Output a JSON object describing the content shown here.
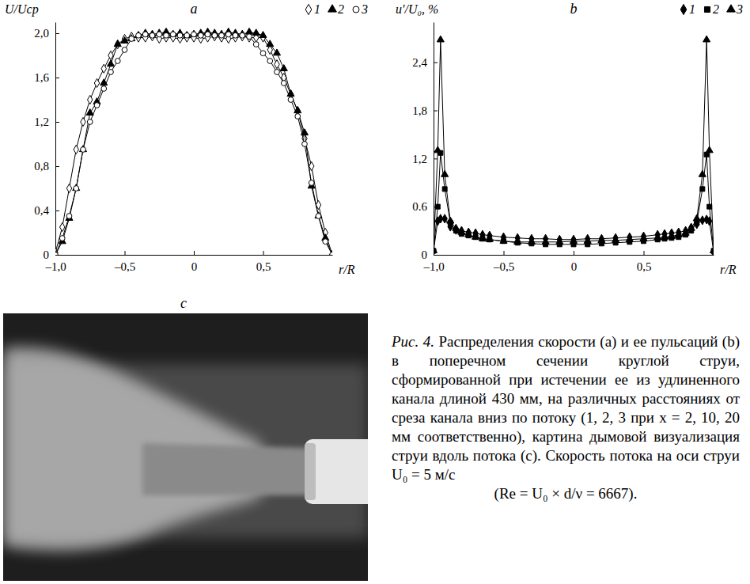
{
  "chart_data": [
    {
      "type": "line",
      "title": "a",
      "x_label": "r/R",
      "y_label": "U/Uср",
      "legend": "top-right",
      "xlim": [
        -1,
        1
      ],
      "ylim": [
        0,
        2.1
      ],
      "xticks": [
        {
          "value": -1,
          "label": "–1,0"
        },
        {
          "value": -0.5,
          "label": "–0,5"
        },
        0,
        {
          "value": 0.5,
          "label": "0,5"
        }
      ],
      "yticks": [
        0,
        {
          "value": 0.4,
          "label": "0,4"
        },
        {
          "value": 0.8,
          "label": "0,8"
        },
        {
          "value": 1.2,
          "label": "1,2"
        },
        {
          "value": 1.6,
          "label": "1,6"
        },
        {
          "value": 2.0,
          "label": "2,0"
        }
      ],
      "x": [
        -1,
        -0.95,
        -0.9,
        -0.85,
        -0.8,
        -0.75,
        -0.7,
        -0.65,
        -0.6,
        -0.55,
        -0.5,
        -0.45,
        -0.4,
        -0.35,
        -0.3,
        -0.25,
        -0.2,
        -0.15,
        -0.1,
        -0.05,
        0,
        0.05,
        0.1,
        0.15,
        0.2,
        0.25,
        0.3,
        0.35,
        0.4,
        0.45,
        0.5,
        0.55,
        0.6,
        0.65,
        0.7,
        0.75,
        0.8,
        0.85,
        0.9,
        0.95,
        1
      ],
      "series": [
        {
          "name": "1",
          "color": "#000000",
          "marker": "open-diamond",
          "values": [
            0.02,
            0.25,
            0.6,
            0.95,
            1.2,
            1.4,
            1.55,
            1.68,
            1.8,
            1.9,
            1.95,
            1.97,
            1.96,
            1.96,
            1.97,
            1.95,
            1.96,
            1.96,
            1.95,
            1.96,
            1.96,
            1.95,
            1.96,
            1.97,
            1.96,
            1.95,
            1.96,
            1.97,
            1.96,
            1.96,
            1.96,
            1.85,
            1.72,
            1.6,
            1.45,
            1.3,
            1.05,
            0.8,
            0.45,
            0.2,
            0.0
          ]
        },
        {
          "name": "2",
          "color": "#000000",
          "marker": "triangle",
          "values": [
            0.0,
            0.12,
            0.33,
            0.6,
            0.95,
            1.28,
            1.38,
            1.55,
            1.72,
            1.9,
            1.93,
            1.95,
            1.98,
            2.0,
            1.99,
            2.0,
            2.01,
            1.99,
            2.0,
            1.98,
            1.99,
            2.0,
            2.01,
            2.0,
            1.99,
            2.01,
            2.0,
            1.99,
            2.01,
            2.0,
            1.98,
            1.9,
            1.82,
            1.68,
            1.45,
            1.3,
            1.1,
            0.62,
            0.35,
            0.15,
            0.0
          ]
        },
        {
          "name": "3",
          "color": "#000000",
          "marker": "open-circle",
          "values": [
            0.0,
            0.15,
            0.35,
            0.6,
            0.95,
            1.2,
            1.35,
            1.5,
            1.65,
            1.75,
            1.85,
            1.95,
            1.98,
            1.99,
            1.98,
            1.99,
            1.98,
            1.99,
            1.98,
            1.98,
            1.99,
            1.98,
            1.99,
            1.98,
            1.98,
            1.99,
            1.98,
            1.98,
            1.97,
            1.9,
            1.82,
            1.75,
            1.65,
            1.55,
            1.4,
            1.25,
            1.0,
            0.65,
            0.35,
            0.12,
            0.0
          ]
        }
      ]
    },
    {
      "type": "line",
      "title": "b",
      "x_label": "r/R",
      "y_label": "u′/U₀, %",
      "legend": "top-right",
      "xlim": [
        -1,
        1
      ],
      "ylim": [
        0,
        2.9
      ],
      "xticks": [
        {
          "value": -1,
          "label": "–1,0"
        },
        {
          "value": -0.5,
          "label": "–0,5"
        },
        0,
        {
          "value": 0.5,
          "label": "0,5"
        }
      ],
      "yticks": [
        0,
        0.6,
        {
          "value": 1.2,
          "label": "1,2"
        },
        {
          "value": 1.8,
          "label": "1,8"
        },
        {
          "value": 2.4,
          "label": "2,4"
        }
      ],
      "x": [
        -1,
        -0.97,
        -0.95,
        -0.92,
        -0.88,
        -0.84,
        -0.8,
        -0.75,
        -0.7,
        -0.65,
        -0.6,
        -0.5,
        -0.4,
        -0.3,
        -0.2,
        -0.1,
        0,
        0.1,
        0.2,
        0.3,
        0.4,
        0.5,
        0.6,
        0.65,
        0.7,
        0.75,
        0.8,
        0.84,
        0.88,
        0.92,
        0.95,
        0.97,
        1
      ],
      "series": [
        {
          "name": "1",
          "color": "#000000",
          "marker": "diamond",
          "values": [
            0.05,
            0.42,
            0.45,
            0.45,
            0.35,
            0.31,
            0.3,
            0.28,
            0.27,
            0.25,
            0.24,
            0.22,
            0.21,
            0.2,
            0.2,
            0.19,
            0.19,
            0.2,
            0.2,
            0.21,
            0.22,
            0.23,
            0.25,
            0.26,
            0.27,
            0.28,
            0.3,
            0.34,
            0.38,
            0.43,
            0.44,
            0.42,
            0.03
          ]
        },
        {
          "name": "2",
          "color": "#000000",
          "marker": "square",
          "values": [
            0.05,
            0.6,
            1.27,
            0.82,
            0.4,
            0.3,
            0.26,
            0.24,
            0.22,
            0.2,
            0.19,
            0.17,
            0.15,
            0.14,
            0.13,
            0.13,
            0.13,
            0.13,
            0.14,
            0.15,
            0.16,
            0.17,
            0.19,
            0.2,
            0.21,
            0.22,
            0.25,
            0.3,
            0.4,
            0.82,
            1.25,
            0.6,
            0.05
          ]
        },
        {
          "name": "3",
          "color": "#000000",
          "marker": "triangle",
          "values": [
            0.05,
            1.3,
            2.68,
            1.0,
            0.42,
            0.33,
            0.28,
            0.25,
            0.22,
            0.2,
            0.19,
            0.17,
            0.16,
            0.16,
            0.16,
            0.16,
            0.17,
            0.17,
            0.18,
            0.18,
            0.19,
            0.2,
            0.21,
            0.22,
            0.23,
            0.25,
            0.27,
            0.33,
            0.45,
            1.0,
            2.68,
            1.3,
            0.05
          ]
        }
      ]
    }
  ],
  "panel_c": {
    "label": "c"
  },
  "caption": {
    "label": "Рис. 4.",
    "text": "Распределения скорости (a) и ее пульсаций (b) в поперечном сечении круглой струи, сформированной при истечении ее из удлиненного канала длиной 430 мм, на различных расстояниях от среза канала вниз по потоку (1, 2, 3 при x = 2, 10, 20 мм соответственно), картина дымовой визуализация струи вдоль потока (c). Скорость потока на оси струи U₀ = 5 м/с",
    "formula": "(Re = U₀ × d/ν = 6667)."
  }
}
